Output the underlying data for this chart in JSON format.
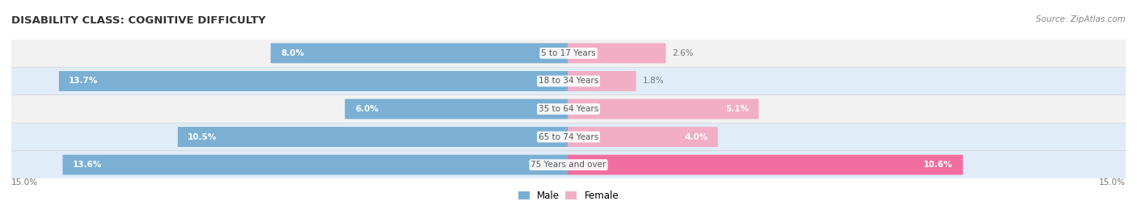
{
  "title": "DISABILITY CLASS: COGNITIVE DIFFICULTY",
  "source": "Source: ZipAtlas.com",
  "categories": [
    "5 to 17 Years",
    "18 to 34 Years",
    "35 to 64 Years",
    "65 to 74 Years",
    "75 Years and over"
  ],
  "male_values": [
    8.0,
    13.7,
    6.0,
    10.5,
    13.6
  ],
  "female_values": [
    2.6,
    1.8,
    5.1,
    4.0,
    10.6
  ],
  "max_val": 15.0,
  "male_color": "#7bafd4",
  "female_colors": [
    "#f2aec4",
    "#f2aec4",
    "#f2aec4",
    "#f2aec4",
    "#f06fa0"
  ],
  "row_bg_colors": [
    "#f2f2f2",
    "#e0ecf8",
    "#f2f2f2",
    "#e0ecf8",
    "#e0ecf8"
  ],
  "title_color": "#333333",
  "source_color": "#888888",
  "legend_male": "Male",
  "legend_female": "Female",
  "axis_label": "15.0%",
  "inside_label_color": "#ffffff",
  "outside_label_color": "#777777",
  "category_label_color": "#555555"
}
